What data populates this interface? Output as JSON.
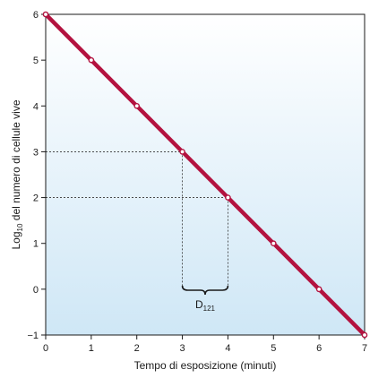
{
  "chart_data": {
    "type": "line",
    "title": "",
    "xlabel": "Tempo di esposizione (minuti)",
    "ylabel_prefix": "Log",
    "ylabel_sub": "10",
    "ylabel_suffix": " del numero di cellule vive",
    "xlim": [
      0,
      7
    ],
    "ylim": [
      -1,
      6
    ],
    "x_ticks": [
      "0",
      "1",
      "2",
      "3",
      "4",
      "5",
      "6",
      "7"
    ],
    "y_ticks": [
      "6",
      "5",
      "4",
      "3",
      "2",
      "1",
      "0",
      "−1"
    ],
    "grid": false,
    "series": [
      {
        "x": [
          0,
          1,
          2,
          3,
          4,
          5,
          6,
          7
        ],
        "y": [
          6,
          5,
          4,
          3,
          2,
          1,
          0,
          -1
        ],
        "color": "#b3123f"
      }
    ],
    "annotations": {
      "guide_points": [
        {
          "x": 3,
          "y": 3
        },
        {
          "x": 4,
          "y": 2
        }
      ],
      "bracket": {
        "x_from": 3,
        "x_to": 4,
        "label_main": "D",
        "label_sub": "121"
      }
    },
    "colors": {
      "background_top": "#ffffff",
      "background_bottom": "#cfe7f6",
      "line": "#b3123f",
      "axis": "#1a1a1a"
    }
  }
}
